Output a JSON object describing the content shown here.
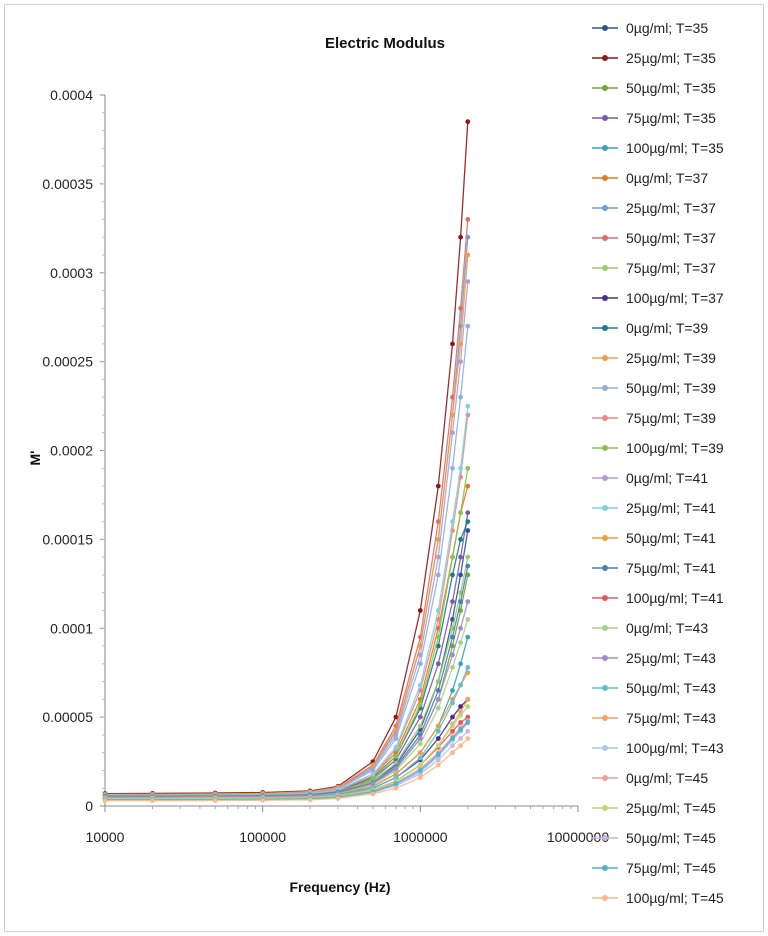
{
  "chart_data": {
    "type": "line",
    "title": "Electric Modulus",
    "xlabel": "Frequency (Hz)",
    "ylabel": "M'",
    "x_scale": "log",
    "xlim": [
      10000,
      10000000
    ],
    "ylim": [
      0,
      0.0004
    ],
    "x_ticks": [
      "10000",
      "100000",
      "1000000",
      "10000000"
    ],
    "y_ticks": [
      "0",
      "0.00005",
      "0.0001",
      "0.00015",
      "0.0002",
      "0.00025",
      "0.0003",
      "0.00035",
      "0.0004"
    ],
    "grid": false,
    "legend_position": "right",
    "x": [
      10000,
      20000,
      50000,
      100000,
      200000,
      300000,
      500000,
      700000,
      1000000,
      1300000,
      1600000,
      1800000,
      2000000
    ],
    "series": [
      {
        "name": "0µg/ml; T=35",
        "color": "#2f5597",
        "values": [
          7e-06,
          7e-06,
          7.1e-06,
          7.2e-06,
          7.7e-06,
          9e-06,
          1.4e-05,
          2.3e-05,
          4.3e-05,
          7e-05,
          0.000105,
          0.00013,
          0.000155
        ]
      },
      {
        "name": "25µg/ml; T=35",
        "color": "#8b1a1a",
        "values": [
          7e-06,
          7.1e-06,
          7.3e-06,
          7.6e-06,
          8.5e-06,
          1.1e-05,
          2.5e-05,
          5e-05,
          0.00011,
          0.00018,
          0.00026,
          0.00032,
          0.000385
        ]
      },
      {
        "name": "50µg/ml; T=35",
        "color": "#77a33c",
        "values": [
          6e-06,
          6e-06,
          6.1e-06,
          6.2e-06,
          6.6e-06,
          8e-06,
          1.3e-05,
          2.1e-05,
          3.8e-05,
          6e-05,
          9e-05,
          0.00011,
          0.00013
        ]
      },
      {
        "name": "75µg/ml; T=35",
        "color": "#7d5aa6",
        "values": [
          6e-06,
          6e-06,
          6.1e-06,
          6.2e-06,
          6.7e-06,
          8.5e-06,
          1.5e-05,
          2.6e-05,
          5e-05,
          8e-05,
          0.000115,
          0.00014,
          0.000165
        ]
      },
      {
        "name": "100µg/ml; T=35",
        "color": "#3aa3b5",
        "values": [
          5e-06,
          5e-06,
          5.1e-06,
          5.2e-06,
          5.7e-06,
          7e-06,
          1.1e-05,
          1.8e-05,
          3e-05,
          4.5e-05,
          6.5e-05,
          8e-05,
          9.5e-05
        ]
      },
      {
        "name": "0µg/ml; T=37",
        "color": "#e07b22",
        "values": [
          6e-06,
          6e-06,
          6.1e-06,
          6.3e-06,
          7e-06,
          9e-06,
          1.7e-05,
          3e-05,
          6e-05,
          0.0001,
          0.00014,
          0.000165,
          0.00018
        ]
      },
      {
        "name": "25µg/ml; T=37",
        "color": "#6d9ed6",
        "values": [
          6.5e-06,
          6.5e-06,
          6.7e-06,
          7e-06,
          8e-06,
          1e-05,
          2.2e-05,
          4.2e-05,
          9e-05,
          0.00015,
          0.00022,
          0.00027,
          0.00032
        ]
      },
      {
        "name": "50µg/ml; T=37",
        "color": "#d9706e",
        "values": [
          6e-06,
          6e-06,
          6.2e-06,
          6.5e-06,
          7.5e-06,
          1e-05,
          2.3e-05,
          4.5e-05,
          9.5e-05,
          0.00016,
          0.00023,
          0.00028,
          0.00033
        ]
      },
      {
        "name": "75µg/ml; T=37",
        "color": "#9bc96b",
        "values": [
          5.5e-06,
          5.5e-06,
          5.6e-06,
          5.8e-06,
          6.4e-06,
          8e-06,
          1.4e-05,
          2.4e-05,
          4.5e-05,
          7e-05,
          0.0001,
          0.00012,
          0.00014
        ]
      },
      {
        "name": "100µg/ml; T=37",
        "color": "#4b2e83",
        "values": [
          5e-06,
          5e-06,
          5.1e-06,
          5.2e-06,
          5.6e-06,
          6.5e-06,
          1e-05,
          1.6e-05,
          2.6e-05,
          3.8e-05,
          5e-05,
          5.6e-05,
          6e-05
        ]
      },
      {
        "name": "0µg/ml; T=39",
        "color": "#1f7a8c",
        "values": [
          6e-06,
          6e-06,
          6.1e-06,
          6.3e-06,
          7e-06,
          8.8e-06,
          1.6e-05,
          2.8e-05,
          5.5e-05,
          9e-05,
          0.00013,
          0.00015,
          0.00016
        ]
      },
      {
        "name": "25µg/ml; T=39",
        "color": "#f0a040",
        "values": [
          6.5e-06,
          6.6e-06,
          6.8e-06,
          7.1e-06,
          8e-06,
          1.05e-05,
          2.3e-05,
          4.3e-05,
          9e-05,
          0.00015,
          0.00022,
          0.00026,
          0.00031
        ]
      },
      {
        "name": "50µg/ml; T=39",
        "color": "#8fb0dd",
        "values": [
          6e-06,
          6e-06,
          6.2e-06,
          6.4e-06,
          7.2e-06,
          9.5e-06,
          2e-05,
          3.8e-05,
          8e-05,
          0.00013,
          0.00019,
          0.00023,
          0.00027
        ]
      },
      {
        "name": "75µg/ml; T=39",
        "color": "#e88a8a",
        "values": [
          5.5e-06,
          5.5e-06,
          5.7e-06,
          5.9e-06,
          6.6e-06,
          8.5e-06,
          1.7e-05,
          3.2e-05,
          6.5e-05,
          0.000105,
          0.000155,
          0.000185,
          0.00022
        ]
      },
      {
        "name": "100µg/ml; T=39",
        "color": "#8cc152",
        "values": [
          5e-06,
          5e-06,
          5.2e-06,
          5.4e-06,
          6e-06,
          7.8e-06,
          1.5e-05,
          2.8e-05,
          5.7e-05,
          9.5e-05,
          0.00014,
          0.000165,
          0.00019
        ]
      },
      {
        "name": "0µg/ml; T=41",
        "color": "#b59cd6",
        "values": [
          6e-06,
          6e-06,
          6.2e-06,
          6.4e-06,
          7.3e-06,
          9.8e-06,
          2.1e-05,
          4e-05,
          8.5e-05,
          0.00014,
          0.00021,
          0.00025,
          0.000295
        ]
      },
      {
        "name": "25µg/ml; T=41",
        "color": "#7fd3de",
        "values": [
          6e-06,
          6e-06,
          6.1e-06,
          6.3e-06,
          7e-06,
          9e-06,
          1.8e-05,
          3.3e-05,
          6.8e-05,
          0.00011,
          0.00016,
          0.00019,
          0.000225
        ]
      },
      {
        "name": "50µg/ml; T=41",
        "color": "#f39c3c",
        "values": [
          5e-06,
          5e-06,
          5.1e-06,
          5.2e-06,
          5.6e-06,
          6.8e-06,
          1.1e-05,
          1.8e-05,
          3e-05,
          4.5e-05,
          6e-05,
          6.8e-05,
          7.5e-05
        ]
      },
      {
        "name": "75µg/ml; T=41",
        "color": "#4a7ebb",
        "values": [
          5.5e-06,
          5.5e-06,
          5.6e-06,
          5.8e-06,
          6.3e-06,
          7.8e-06,
          1.3e-05,
          2.2e-05,
          4e-05,
          6.5e-05,
          9.5e-05,
          0.000115,
          0.000135
        ]
      },
      {
        "name": "100µg/ml; T=41",
        "color": "#e05a5a",
        "values": [
          4.5e-06,
          4.5e-06,
          4.6e-06,
          4.7e-06,
          5e-06,
          5.8e-06,
          9e-06,
          1.4e-05,
          2.3e-05,
          3.3e-05,
          4.2e-05,
          4.7e-05,
          5e-05
        ]
      },
      {
        "name": "0µg/ml; T=43",
        "color": "#a8d08d",
        "values": [
          5e-06,
          5e-06,
          5.1e-06,
          5.2e-06,
          5.7e-06,
          7e-06,
          1.2e-05,
          2e-05,
          3.5e-05,
          5.5e-05,
          7.8e-05,
          9.2e-05,
          0.000105
        ]
      },
      {
        "name": "25µg/ml; T=43",
        "color": "#9e8fc9",
        "values": [
          5e-06,
          5e-06,
          5.1e-06,
          5.3e-06,
          5.8e-06,
          7.2e-06,
          1.25e-05,
          2.1e-05,
          3.8e-05,
          6e-05,
          8.5e-05,
          0.0001,
          0.000115
        ]
      },
      {
        "name": "50µg/ml; T=43",
        "color": "#5bc0d6",
        "values": [
          4.5e-06,
          4.5e-06,
          4.6e-06,
          4.7e-06,
          5.1e-06,
          6.2e-06,
          1e-05,
          1.6e-05,
          2.7e-05,
          4.2e-05,
          5.8e-05,
          6.8e-05,
          7.8e-05
        ]
      },
      {
        "name": "75µg/ml; T=43",
        "color": "#f4a460",
        "values": [
          4.5e-06,
          4.5e-06,
          4.6e-06,
          4.7e-06,
          5e-06,
          5.8e-06,
          9e-06,
          1.4e-05,
          2.3e-05,
          3.4e-05,
          4.6e-05,
          5.3e-05,
          6e-05
        ]
      },
      {
        "name": "100µg/ml; T=43",
        "color": "#aac8ea",
        "values": [
          4e-06,
          4e-06,
          4.1e-06,
          4.2e-06,
          4.5e-06,
          5.2e-06,
          8e-06,
          1.2e-05,
          1.9e-05,
          2.8e-05,
          3.7e-05,
          4.2e-05,
          4.7e-05
        ]
      },
      {
        "name": "0µg/ml; T=45",
        "color": "#e8a0a0",
        "values": [
          4e-06,
          4e-06,
          4.1e-06,
          4.2e-06,
          4.5e-06,
          5.3e-06,
          8.5e-06,
          1.3e-05,
          2.1e-05,
          3e-05,
          3.9e-05,
          4.4e-05,
          4.8e-05
        ]
      },
      {
        "name": "25µg/ml; T=45",
        "color": "#b7d77a",
        "values": [
          4e-06,
          4e-06,
          4.1e-06,
          4.2e-06,
          4.6e-06,
          5.5e-06,
          9e-06,
          1.4e-05,
          2.3e-05,
          3.4e-05,
          4.5e-05,
          5.1e-05,
          5.6e-05
        ]
      },
      {
        "name": "50µg/ml; T=45",
        "color": "#c9b6e4",
        "values": [
          3.5e-06,
          3.5e-06,
          3.6e-06,
          3.7e-06,
          4e-06,
          4.7e-06,
          7.5e-06,
          1.15e-05,
          1.8e-05,
          2.6e-05,
          3.4e-05,
          3.8e-05,
          4.2e-05
        ]
      },
      {
        "name": "75µg/ml; T=45",
        "color": "#4fb3c8",
        "values": [
          3.5e-06,
          3.5e-06,
          3.6e-06,
          3.7e-06,
          4.1e-06,
          5e-06,
          8e-06,
          1.25e-05,
          2e-05,
          2.9e-05,
          3.8e-05,
          4.3e-05,
          4.7e-05
        ]
      },
      {
        "name": "100µg/ml; T=45",
        "color": "#f7b98a",
        "values": [
          3e-06,
          3e-06,
          3.1e-06,
          3.2e-06,
          3.5e-06,
          4.2e-06,
          6.8e-06,
          1e-05,
          1.6e-05,
          2.3e-05,
          3e-05,
          3.4e-05,
          3.8e-05
        ]
      }
    ]
  }
}
